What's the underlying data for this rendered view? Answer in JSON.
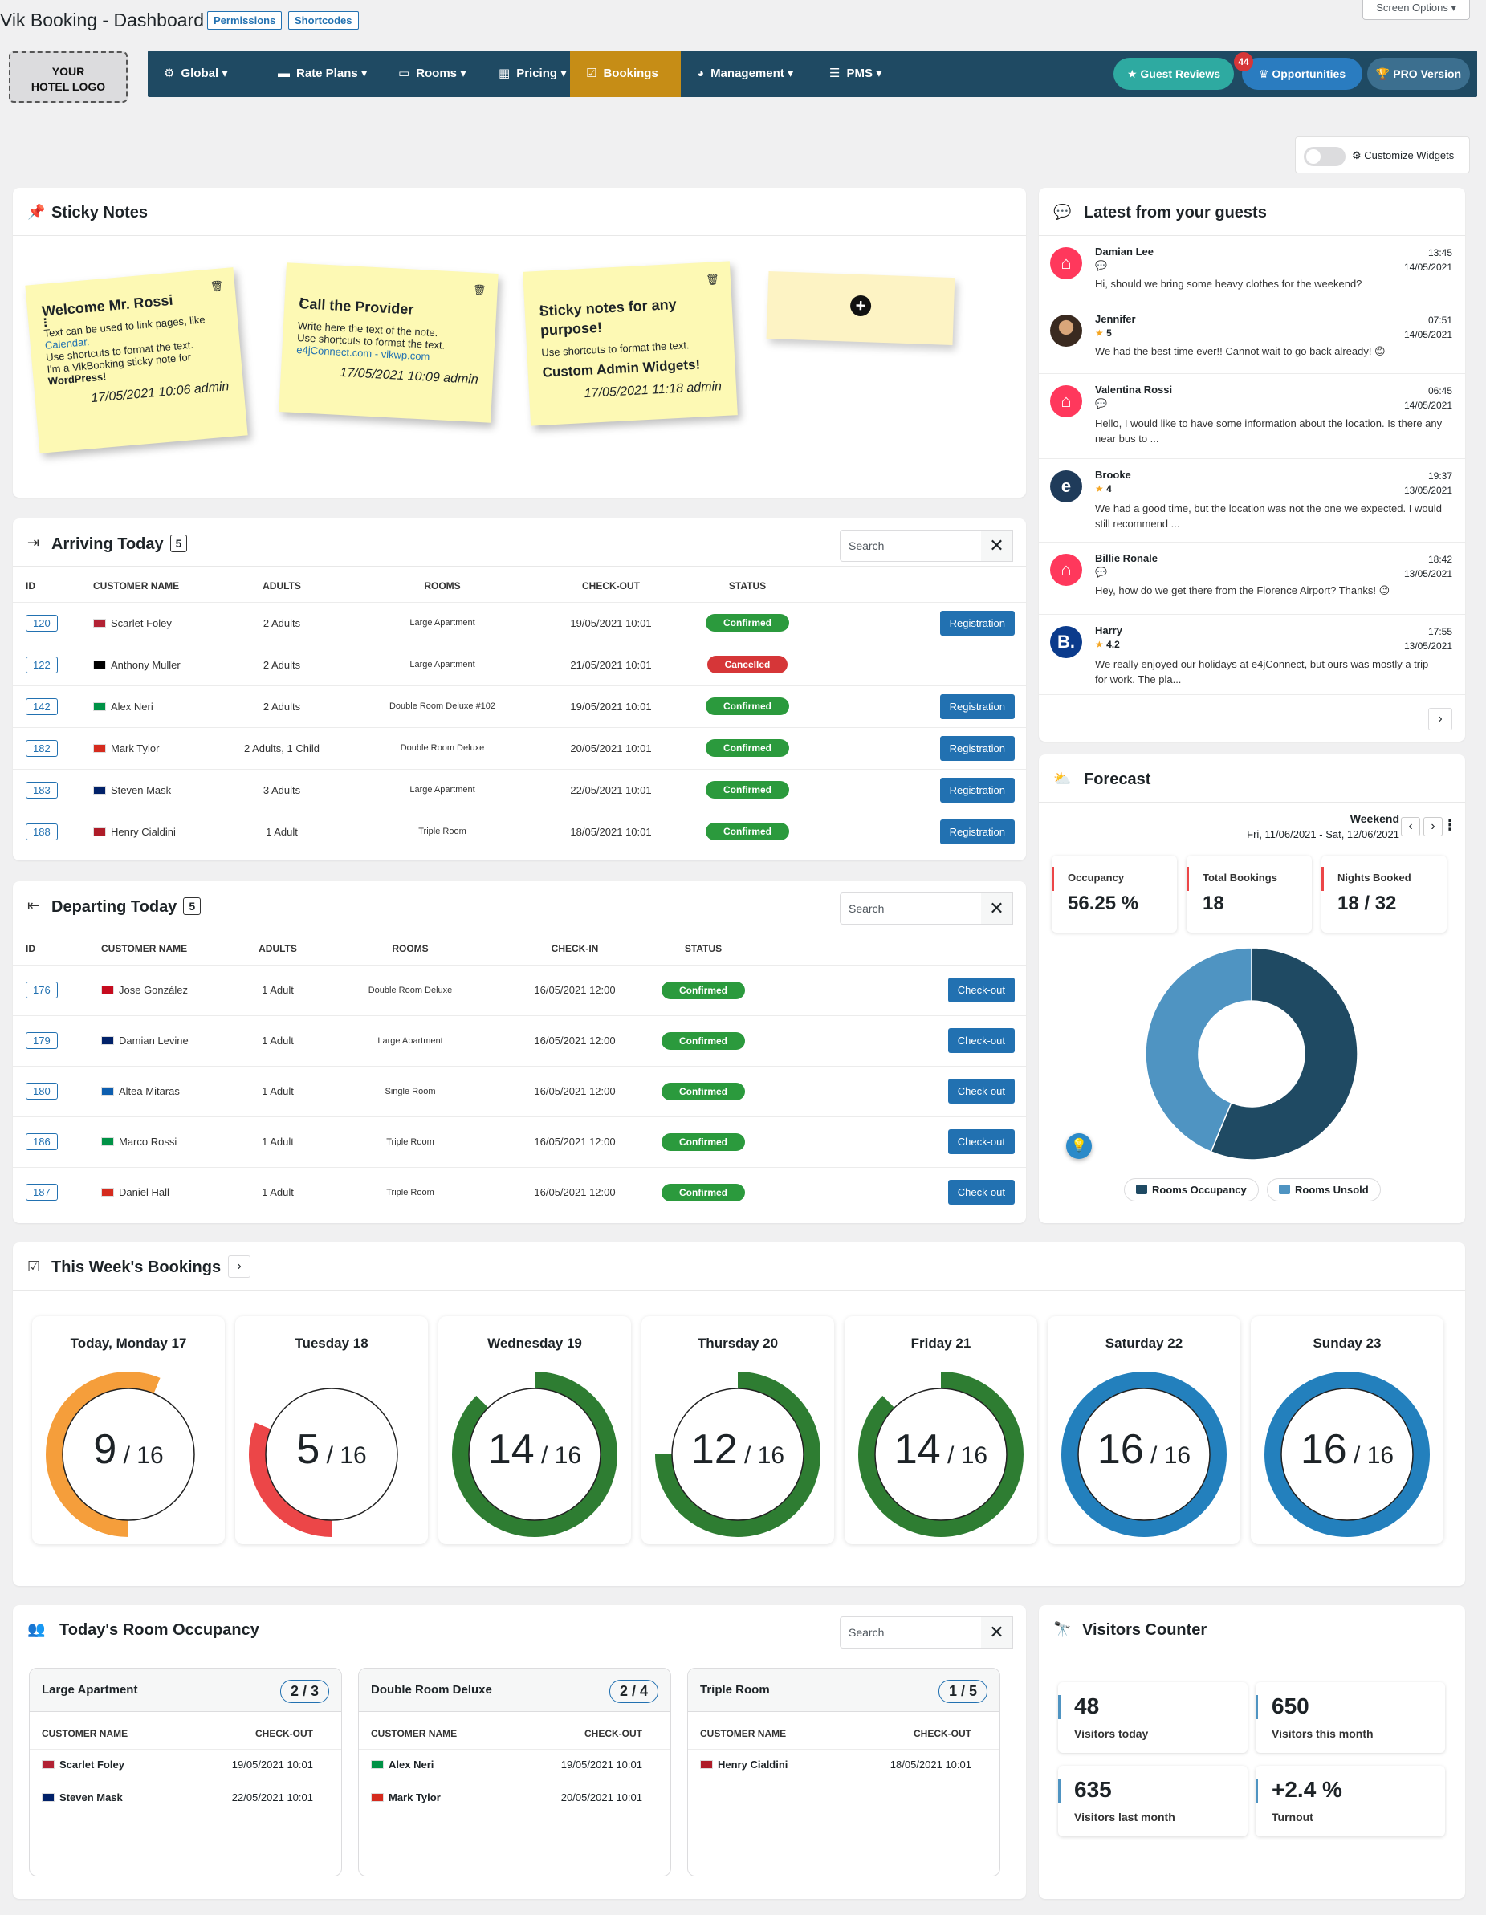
{
  "header": {
    "title": "Vik Booking - Dashboard",
    "permissions": "Permissions",
    "shortcodes": "Shortcodes",
    "screen_options": "Screen Options ▾"
  },
  "logo": {
    "line1": "YOUR",
    "line2": "HOTEL LOGO"
  },
  "menu": [
    {
      "label": "Global"
    },
    {
      "label": "Rate Plans"
    },
    {
      "label": "Rooms"
    },
    {
      "label": "Pricing"
    },
    {
      "label": "Bookings"
    },
    {
      "label": "Management"
    },
    {
      "label": "PMS"
    }
  ],
  "pills": {
    "reviews": "Guest Reviews",
    "opportunities": "Opportunities",
    "opportunities_badge": "44",
    "pro": "PRO Version"
  },
  "customize": "Customize Widgets",
  "sticky": {
    "title": "Sticky Notes",
    "notes": [
      {
        "title": "Welcome Mr. Rossi",
        "l1": "Text can be used to link pages, like",
        "l2": "Calendar.",
        "l3": "Use shortcuts to format the text.",
        "l4": "I'm a VikBooking sticky note for",
        "l5": "WordPress!",
        "date": "17/05/2021 10:06 admin"
      },
      {
        "title": "Call the Provider",
        "l1": "Write here the text of the note.",
        "l2": "Use shortcuts to format the text.",
        "l3": "e4jConnect.com - vikwp.com",
        "date": "17/05/2021 10:09 admin"
      },
      {
        "title": "Sticky notes for any purpose!",
        "l1": "Use shortcuts to format the text.",
        "l2": "Custom Admin Widgets!",
        "date": "17/05/2021 11:18 admin"
      }
    ]
  },
  "arriving": {
    "title": "Arriving Today",
    "count": "5",
    "search": "Search",
    "cols": [
      "ID",
      "CUSTOMER NAME",
      "ADULTS",
      "ROOMS",
      "CHECK-OUT",
      "STATUS"
    ],
    "rows": [
      {
        "id": "120",
        "name": "Scarlet Foley",
        "adults": "2 Adults",
        "room": "Large Apartment",
        "date": "19/05/2021 10:01",
        "status": "Confirmed",
        "action": "Registration"
      },
      {
        "id": "122",
        "name": "Anthony Muller",
        "adults": "2 Adults",
        "room": "Large Apartment",
        "date": "21/05/2021 10:01",
        "status": "Cancelled",
        "action": ""
      },
      {
        "id": "142",
        "name": "Alex Neri",
        "adults": "2 Adults",
        "room": "Double Room Deluxe #102",
        "date": "19/05/2021 10:01",
        "status": "Confirmed",
        "action": "Registration"
      },
      {
        "id": "182",
        "name": "Mark Tylor",
        "adults": "2 Adults, 1 Child",
        "room": "Double Room Deluxe",
        "date": "20/05/2021 10:01",
        "status": "Confirmed",
        "action": "Registration"
      },
      {
        "id": "183",
        "name": "Steven Mask",
        "adults": "3 Adults",
        "room": "Large Apartment",
        "date": "22/05/2021 10:01",
        "status": "Confirmed",
        "action": "Registration"
      },
      {
        "id": "188",
        "name": "Henry Cialdini",
        "adults": "1 Adult",
        "room": "Triple Room",
        "date": "18/05/2021 10:01",
        "status": "Confirmed",
        "action": "Registration"
      }
    ]
  },
  "departing": {
    "title": "Departing Today",
    "count": "5",
    "search": "Search",
    "cols": [
      "ID",
      "CUSTOMER NAME",
      "ADULTS",
      "ROOMS",
      "CHECK-IN",
      "STATUS"
    ],
    "rows": [
      {
        "id": "176",
        "name": "Jose González",
        "adults": "1 Adult",
        "room": "Double Room Deluxe",
        "date": "16/05/2021 12:00",
        "status": "Confirmed",
        "action": "Check-out"
      },
      {
        "id": "179",
        "name": "Damian Levine",
        "adults": "1 Adult",
        "room": "Large Apartment",
        "date": "16/05/2021 12:00",
        "status": "Confirmed",
        "action": "Check-out"
      },
      {
        "id": "180",
        "name": "Altea Mitaras",
        "adults": "1 Adult",
        "room": "Single Room",
        "date": "16/05/2021 12:00",
        "status": "Confirmed",
        "action": "Check-out"
      },
      {
        "id": "186",
        "name": "Marco Rossi",
        "adults": "1 Adult",
        "room": "Triple Room",
        "date": "16/05/2021 12:00",
        "status": "Confirmed",
        "action": "Check-out"
      },
      {
        "id": "187",
        "name": "Daniel Hall",
        "adults": "1 Adult",
        "room": "Triple Room",
        "date": "16/05/2021 12:00",
        "status": "Confirmed",
        "action": "Check-out"
      }
    ]
  },
  "guests": {
    "title": "Latest from your guests",
    "items": [
      {
        "name": "Damian Lee",
        "time": "13:45",
        "date": "14/05/2021",
        "sub": "",
        "msg": "Hi, should we bring some heavy clothes for the weekend?"
      },
      {
        "name": "Jennifer",
        "time": "07:51",
        "date": "14/05/2021",
        "sub": "5",
        "msg": "We had the best time ever!! Cannot wait to go back already! 😊"
      },
      {
        "name": "Valentina Rossi",
        "time": "06:45",
        "date": "14/05/2021",
        "sub": "",
        "msg": "Hello, I would like to have some information about the location. Is there any near bus to ..."
      },
      {
        "name": "Brooke",
        "time": "19:37",
        "date": "13/05/2021",
        "sub": "4",
        "msg": "We had a good time, but the location was not the one we expected. I would still recommend ..."
      },
      {
        "name": "Billie Ronale",
        "time": "18:42",
        "date": "13/05/2021",
        "sub": "",
        "msg": "Hey, how do we get there from the Florence Airport? Thanks! 😊"
      },
      {
        "name": "Harry",
        "time": "17:55",
        "date": "13/05/2021",
        "sub": "4.2",
        "msg": "We really enjoyed our holidays at e4jConnect, but ours was mostly a trip for work. The pla..."
      }
    ]
  },
  "forecast": {
    "title": "Forecast",
    "period": "Weekend",
    "range": "Fri, 11/06/2021 - Sat, 12/06/2021",
    "stats": [
      {
        "label": "Occupancy",
        "value": "56.25 %"
      },
      {
        "label": "Total Bookings",
        "value": "18"
      },
      {
        "label": "Nights Booked",
        "value": "18 / 32"
      }
    ],
    "legend": [
      "Rooms Occupancy",
      "Rooms Unsold"
    ]
  },
  "chart_data": {
    "type": "pie",
    "categories": [
      "Rooms Occupancy",
      "Rooms Unsold"
    ],
    "values": [
      18,
      14
    ],
    "colors": [
      "#1f4a63",
      "#4f94c2"
    ]
  },
  "week": {
    "title": "This Week's Bookings",
    "days": [
      {
        "label": "Today, Monday 17",
        "booked": "9",
        "total": "16",
        "pct": 0.5625,
        "color": "#f59e3b"
      },
      {
        "label": "Tuesday 18",
        "booked": "5",
        "total": "16",
        "pct": 0.3125,
        "color": "#ec4648"
      },
      {
        "label": "Wednesday 19",
        "booked": "14",
        "total": "16",
        "pct": 0.875,
        "color": "#2e7d32"
      },
      {
        "label": "Thursday 20",
        "booked": "12",
        "total": "16",
        "pct": 0.75,
        "color": "#2e7d32"
      },
      {
        "label": "Friday 21",
        "booked": "14",
        "total": "16",
        "pct": 0.875,
        "color": "#2e7d32"
      },
      {
        "label": "Saturday 22",
        "booked": "16",
        "total": "16",
        "pct": 1,
        "color": "#2380bd"
      },
      {
        "label": "Sunday 23",
        "booked": "16",
        "total": "16",
        "pct": 1,
        "color": "#2380bd"
      }
    ]
  },
  "occupancy": {
    "title": "Today's Room Occupancy",
    "search": "Search",
    "col1": "CUSTOMER NAME",
    "col2": "CHECK-OUT",
    "rooms": [
      {
        "name": "Large Apartment",
        "count": "2 / 3",
        "rows": [
          {
            "name": "Scarlet Foley",
            "date": "19/05/2021 10:01"
          },
          {
            "name": "Steven Mask",
            "date": "22/05/2021 10:01"
          }
        ]
      },
      {
        "name": "Double Room Deluxe",
        "count": "2 / 4",
        "rows": [
          {
            "name": "Alex Neri",
            "date": "19/05/2021 10:01"
          },
          {
            "name": "Mark Tylor",
            "date": "20/05/2021 10:01"
          }
        ]
      },
      {
        "name": "Triple Room",
        "count": "1 / 5",
        "rows": [
          {
            "name": "Henry Cialdini",
            "date": "18/05/2021 10:01"
          }
        ]
      }
    ]
  },
  "visitors": {
    "title": "Visitors Counter",
    "cards": [
      {
        "value": "48",
        "label": "Visitors today"
      },
      {
        "value": "650",
        "label": "Visitors this month"
      },
      {
        "value": "635",
        "label": "Visitors last month"
      },
      {
        "value": "+2.4 %",
        "label": "Turnout"
      }
    ]
  }
}
